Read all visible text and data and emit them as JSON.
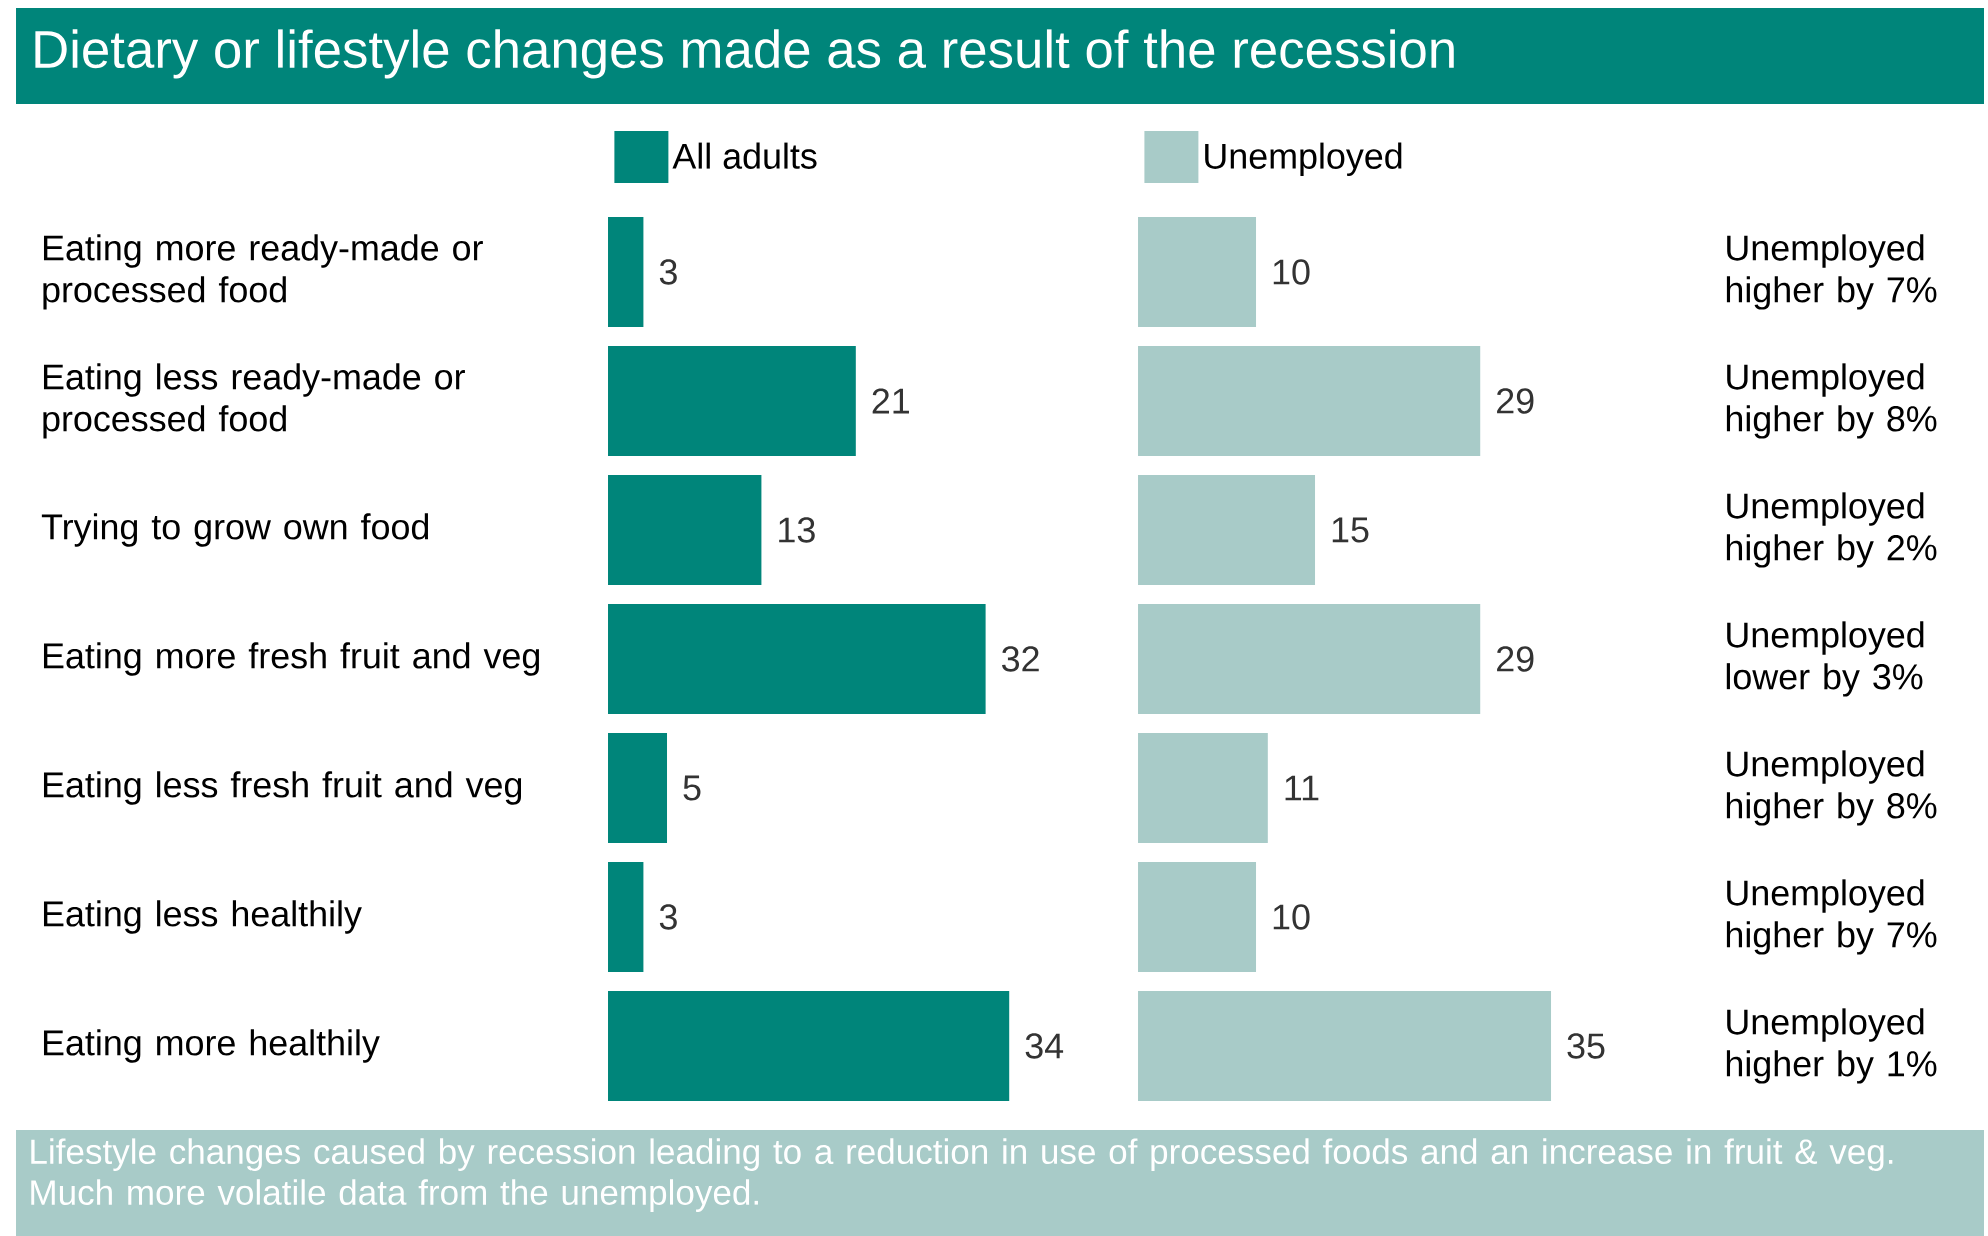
{
  "chart_data": [
    {
      "type": "bar",
      "orientation": "horizontal",
      "title": "Dietary or lifestyle changes made as a result of the recession",
      "categories": [
        "Eating more ready-made or processed food",
        "Eating less ready-made or processed food",
        "Trying to grow own food",
        "Eating more fresh fruit and veg",
        "Eating less fresh fruit and veg",
        "Eating less healthily",
        "Eating more healthily"
      ],
      "series": [
        {
          "name": "All adults",
          "color": "#00857a",
          "values": [
            3,
            21,
            13,
            32,
            5,
            3,
            34
          ]
        }
      ],
      "data_labels": true,
      "legend": "top",
      "tick_labels": "y",
      "annotations": [
        "Lifestyle changes caused by recession leading to a reduction in use of processed foods and an increase in fruit & veg. Much more volatile data from the unemployed."
      ]
    },
    {
      "type": "bar",
      "orientation": "horizontal",
      "categories": [
        null,
        null,
        null,
        null,
        null,
        null,
        null
      ],
      "series": [
        {
          "name": "Unemployed",
          "color": "#a8cbc8",
          "values": [
            10,
            29,
            15,
            29,
            11,
            10,
            35
          ]
        }
      ],
      "data_labels": true,
      "legend": "top",
      "tick_labels": false,
      "annotations": [
        "Unemployed higher by 7%",
        "Unemployed higher by 8%",
        "Unemployed higher by 2%",
        "Unemployed lower by 3%",
        "Unemployed higher by 8%",
        "Unemployed higher by 7%",
        "Unemployed higher by 1%"
      ]
    }
  ]
}
